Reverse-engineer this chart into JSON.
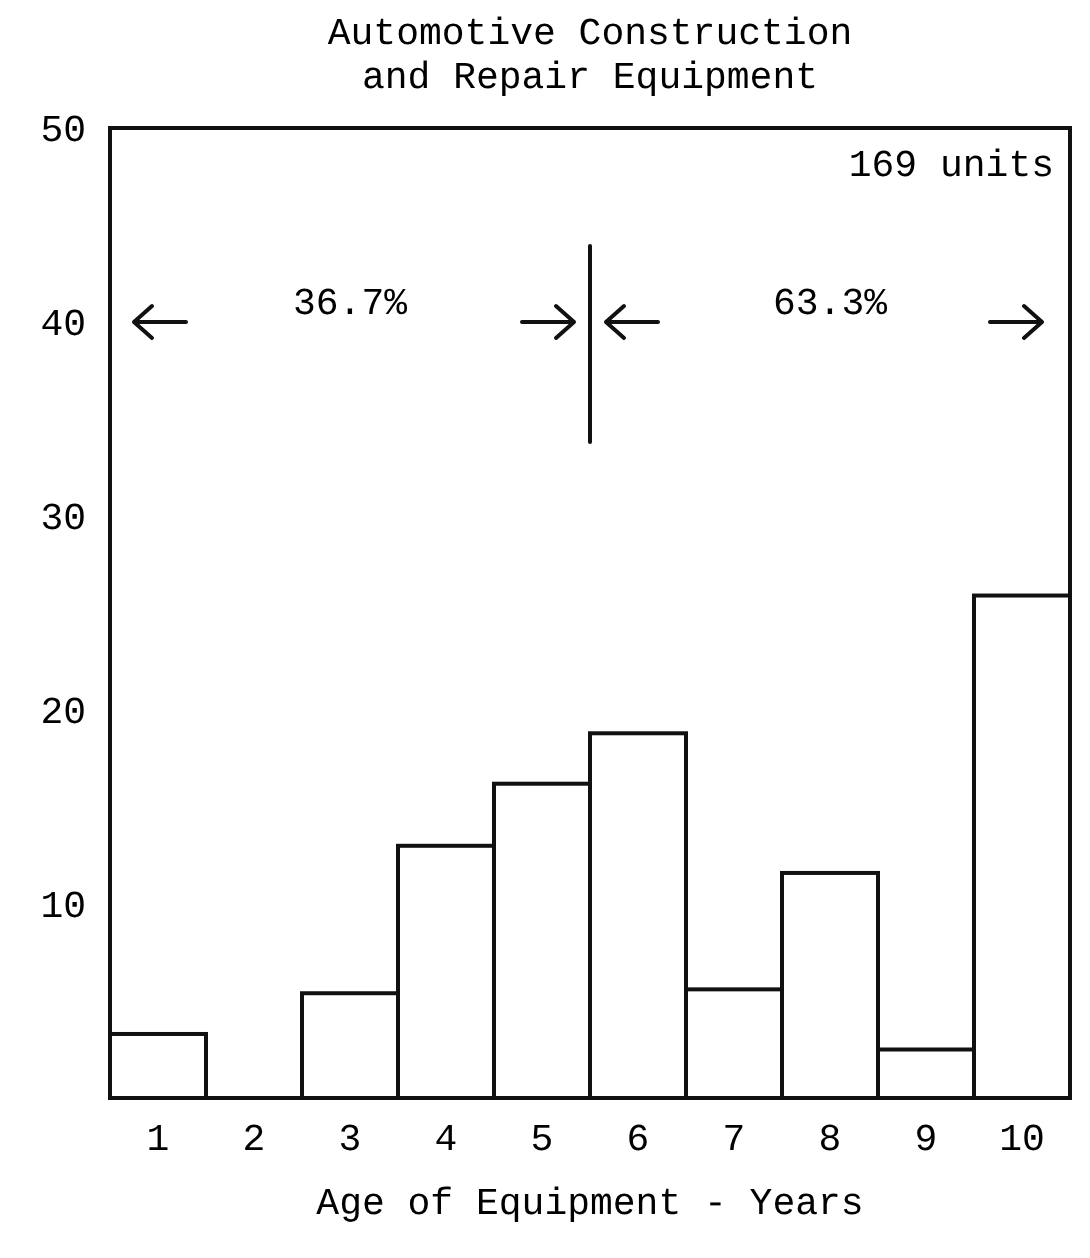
{
  "chart_data": {
    "type": "bar",
    "title": "Automotive Construction\nand Repair Equipment",
    "xlabel": "Age of Equipment - Years",
    "categories": [
      "1",
      "2",
      "3",
      "4",
      "5",
      "6",
      "7",
      "8",
      "9",
      "10"
    ],
    "values": [
      3.3,
      0,
      5.4,
      13,
      16.2,
      18.8,
      5.6,
      11.6,
      2.5,
      25.9
    ],
    "color": "#ffffff",
    "ylim": [
      0,
      50
    ],
    "yticks": [
      10,
      20,
      30,
      40,
      50
    ],
    "grid": false,
    "annotations": [
      "169 units",
      "36.7%",
      "63.3%"
    ]
  }
}
